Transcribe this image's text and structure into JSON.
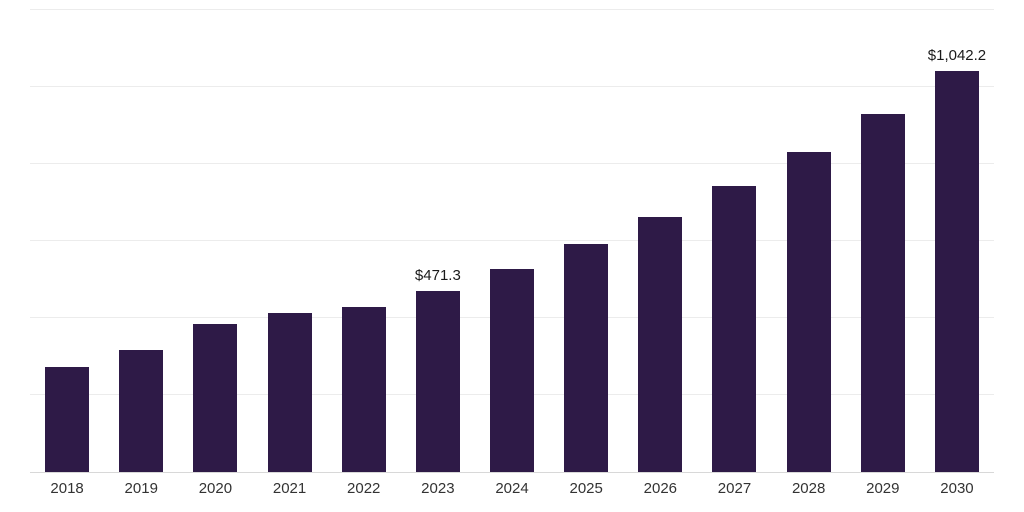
{
  "chart_data": {
    "type": "bar",
    "title": "",
    "xlabel": "",
    "ylabel": "",
    "categories": [
      "2018",
      "2019",
      "2020",
      "2021",
      "2022",
      "2023",
      "2024",
      "2025",
      "2026",
      "2027",
      "2028",
      "2029",
      "2030"
    ],
    "values": [
      272,
      318,
      385,
      412,
      428,
      471.3,
      527.9,
      591.2,
      662.2,
      741.6,
      830.6,
      930.3,
      1042.2
    ],
    "value_labels": [
      null,
      null,
      null,
      null,
      null,
      "$471.3",
      null,
      null,
      null,
      null,
      null,
      null,
      "$1,042.2"
    ],
    "ylim": [
      0,
      1200
    ],
    "gridline_step": 200,
    "grid": true,
    "legend": false,
    "colors": {
      "bar": "#2E1A47",
      "grid": "#ECECEC",
      "axis_line": "#D8D8D8",
      "value_label_text": "#1A1A1A",
      "tick_text": "#333333",
      "background": "#FFFFFF"
    }
  }
}
